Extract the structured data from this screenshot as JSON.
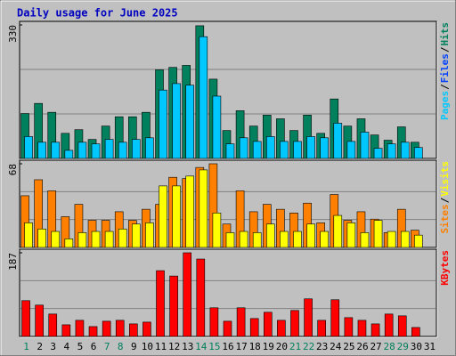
{
  "chart_data": {
    "type": "bar",
    "title": "Daily usage for June 2025",
    "separator": "/",
    "categories": [
      "1",
      "2",
      "3",
      "4",
      "5",
      "6",
      "7",
      "8",
      "9",
      "10",
      "11",
      "12",
      "13",
      "14",
      "15",
      "16",
      "17",
      "18",
      "19",
      "20",
      "21",
      "22",
      "23",
      "24",
      "25",
      "26",
      "27",
      "28",
      "29",
      "30",
      "31"
    ],
    "weekend_days": [
      0,
      6,
      7,
      13,
      14,
      20,
      21,
      27,
      28
    ],
    "weekday_color": "#000000",
    "weekend_color": "#00805c",
    "panels": [
      {
        "ylim": [
          0,
          330
        ],
        "yticks": [
          330
        ],
        "legend": [
          {
            "text": "Pages",
            "color": "#00c8ff"
          },
          {
            "text": "Files",
            "color": "#0040ff"
          },
          {
            "text": "Hits",
            "color": "#00805c"
          }
        ],
        "series": [
          {
            "name": "Hits",
            "color": "#00805c",
            "values": [
              111,
              136,
              114,
              62,
              71,
              47,
              80,
              103,
              103,
              114,
              219,
              225,
              230,
              328,
              196,
              69,
              118,
              80,
              107,
              98,
              69,
              107,
              62,
              147,
              80,
              98,
              58,
              45,
              78,
              40,
              0
            ]
          },
          {
            "name": "Pages",
            "color": "#00c8ff",
            "values": [
              54,
              40,
              40,
              20,
              40,
              36,
              47,
              40,
              47,
              51,
              169,
              185,
              181,
              301,
              154,
              36,
              51,
              42,
              54,
              42,
              42,
              54,
              51,
              87,
              42,
              65,
              25,
              36,
              40,
              27,
              0
            ]
          }
        ]
      },
      {
        "ylim": [
          0,
          68
        ],
        "yticks": [
          68
        ],
        "legend": [
          {
            "text": "Sites",
            "color": "#ff8000"
          },
          {
            "text": "Visits",
            "color": "#ffff00"
          }
        ],
        "series": [
          {
            "name": "Sites",
            "color": "#ff8000",
            "values": [
              42,
              55,
              46,
              25,
              35,
              22,
              22,
              29,
              22,
              31,
              35,
              57,
              56,
              65,
              68,
              19,
              46,
              29,
              35,
              31,
              28,
              36,
              20,
              43,
              22,
              29,
              23,
              12,
              31,
              14,
              0
            ]
          },
          {
            "name": "Visits",
            "color": "#ffff00",
            "values": [
              20,
              15,
              13,
              7,
              12,
              13,
              13,
              15,
              19,
              20,
              50,
              50,
              58,
              63,
              28,
              12,
              13,
              12,
              19,
              13,
              13,
              19,
              13,
              26,
              20,
              12,
              22,
              13,
              13,
              10,
              0
            ]
          }
        ]
      },
      {
        "ylim": [
          0,
          187
        ],
        "yticks": [
          187
        ],
        "legend": [
          {
            "text": "KBytes",
            "color": "#ff0000"
          }
        ],
        "series": [
          {
            "name": "KBytes",
            "color": "#ff0000",
            "values": [
              80,
              70,
              50,
              26,
              36,
              22,
              34,
              36,
              28,
              32,
              147,
              135,
              187,
              173,
              64,
              34,
              64,
              40,
              54,
              36,
              58,
              84,
              36,
              82,
              42,
              36,
              28,
              50,
              46,
              20,
              0
            ]
          }
        ]
      }
    ]
  }
}
